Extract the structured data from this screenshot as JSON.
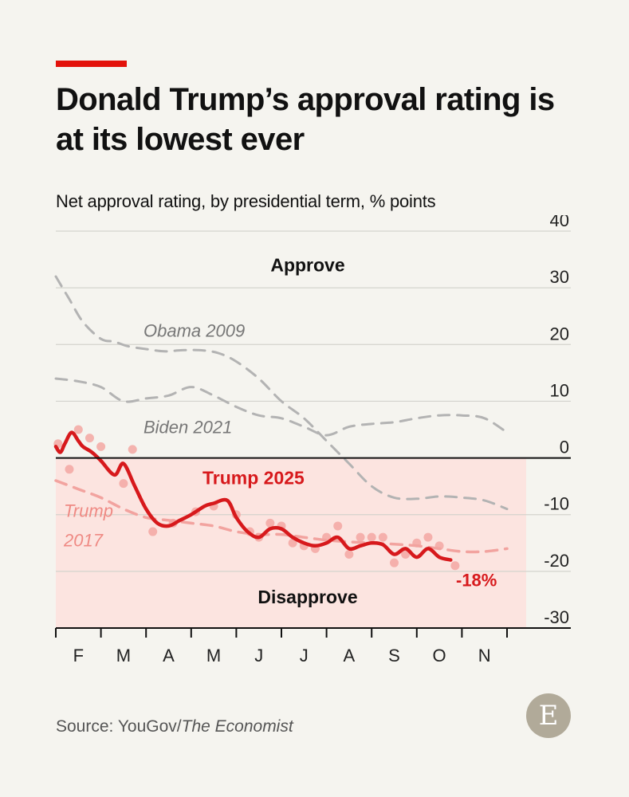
{
  "header": {
    "title": "Donald Trump’s approval rating is at its lowest ever",
    "subtitle": "Net approval rating, by presidential term, % points"
  },
  "footer": {
    "source_prefix": "Source: YouGov/",
    "source_italic": "The Economist",
    "logo_letter": "E"
  },
  "colors": {
    "accent": "#e3120b",
    "trump2025": "#d7191c",
    "trump2017": "#f2a39f",
    "others": "#b3b3b3",
    "disapprove_fill": "#fce4e0",
    "grid": "#d4d3cd",
    "axis": "#111111"
  },
  "chart_data": {
    "type": "line",
    "ylim": [
      -30,
      40
    ],
    "y_ticks": [
      40,
      30,
      20,
      10,
      0,
      -10,
      -20,
      -30
    ],
    "x_ticks": [
      "F",
      "M",
      "A",
      "M",
      "J",
      "J",
      "A",
      "S",
      "O",
      "N"
    ],
    "x_unit": "months since January 20th",
    "region_labels": {
      "above": "Approve",
      "below": "Disapprove"
    },
    "series": [
      {
        "name": "Obama 2009",
        "style": "dashed",
        "x": [
          0,
          0.3,
          0.6,
          1.0,
          1.3,
          1.6,
          2.0,
          2.4,
          2.8,
          3.2,
          3.6,
          4.0,
          4.5,
          5.0,
          5.5,
          6.0,
          6.5,
          7.0,
          7.5,
          8.0,
          8.5,
          9.0,
          9.5,
          10.0
        ],
        "values": [
          32,
          28,
          24,
          21,
          20.5,
          19.7,
          19.2,
          18.8,
          19,
          19,
          18.5,
          17,
          14,
          10,
          7,
          3,
          -1,
          -5,
          -7,
          -7.2,
          -6.8,
          -7,
          -7.5,
          -9
        ]
      },
      {
        "name": "Biden 2021",
        "style": "dashed",
        "x": [
          0,
          0.5,
          1.0,
          1.5,
          2.0,
          2.5,
          3.0,
          3.5,
          4.0,
          4.5,
          5.0,
          5.5,
          6.0,
          6.5,
          7.0,
          7.5,
          8.0,
          8.5,
          9.0,
          9.5,
          10.0
        ],
        "values": [
          14,
          13.5,
          12.5,
          10,
          10.5,
          11,
          12.5,
          11,
          9,
          7.5,
          7,
          5.5,
          4,
          5.5,
          6,
          6.3,
          7,
          7.5,
          7.5,
          7,
          4.5
        ]
      },
      {
        "name": "Trump 2017",
        "style": "dashed",
        "x": [
          0,
          0.5,
          1.0,
          1.5,
          2.0,
          2.5,
          3.0,
          3.5,
          4.0,
          4.5,
          5.0,
          5.5,
          6.0,
          6.5,
          7.0,
          7.5,
          8.0,
          8.5,
          9.0,
          9.5,
          10.0
        ],
        "values": [
          -4,
          -5.5,
          -7,
          -9,
          -10.5,
          -11,
          -11.5,
          -12,
          -13,
          -13.5,
          -13.5,
          -14,
          -14.5,
          -14.8,
          -15,
          -15.2,
          -15.5,
          -16,
          -16.5,
          -16.5,
          -16
        ]
      },
      {
        "name": "Trump 2025",
        "style": "solid",
        "end_label": "-18%",
        "x": [
          0,
          0.1,
          0.2,
          0.35,
          0.5,
          0.6,
          0.8,
          1.0,
          1.3,
          1.5,
          1.75,
          2.0,
          2.25,
          2.5,
          2.75,
          3.0,
          3.3,
          3.5,
          3.8,
          4.0,
          4.25,
          4.5,
          4.75,
          5.0,
          5.25,
          5.5,
          5.75,
          6.0,
          6.25,
          6.5,
          6.75,
          7.0,
          7.25,
          7.5,
          7.75,
          8.0,
          8.25,
          8.5,
          8.75
        ],
        "values": [
          2,
          1,
          2.5,
          4.5,
          3,
          2,
          1,
          -0.5,
          -3,
          -1,
          -5,
          -9,
          -11.5,
          -12,
          -11,
          -10,
          -8.5,
          -8,
          -7.5,
          -10.5,
          -13,
          -14,
          -12.5,
          -12.5,
          -14,
          -15,
          -15.5,
          -15,
          -14,
          -16,
          -15.5,
          -15,
          -15.3,
          -17,
          -16,
          -17.5,
          -16,
          -17.5,
          -18
        ]
      }
    ],
    "scatter_points": {
      "x": [
        0.05,
        0.3,
        0.5,
        0.75,
        1.0,
        1.5,
        1.7,
        2.15,
        2.6,
        3.1,
        3.5,
        4.0,
        4.3,
        4.5,
        4.75,
        5.0,
        5.25,
        5.5,
        5.75,
        6.0,
        6.25,
        6.5,
        6.75,
        7.0,
        7.25,
        7.5,
        7.75,
        8.0,
        8.25,
        8.5,
        8.85
      ],
      "values": [
        2.5,
        -2,
        5,
        3.5,
        2,
        -4.5,
        1.5,
        -13,
        -11.5,
        -9.5,
        -8.5,
        -10,
        -13,
        -14,
        -11.5,
        -12,
        -15,
        -15.5,
        -16,
        -14,
        -12,
        -17,
        -14,
        -14,
        -14,
        -18.5,
        -17,
        -15,
        -14,
        -15.5,
        -19
      ]
    }
  }
}
